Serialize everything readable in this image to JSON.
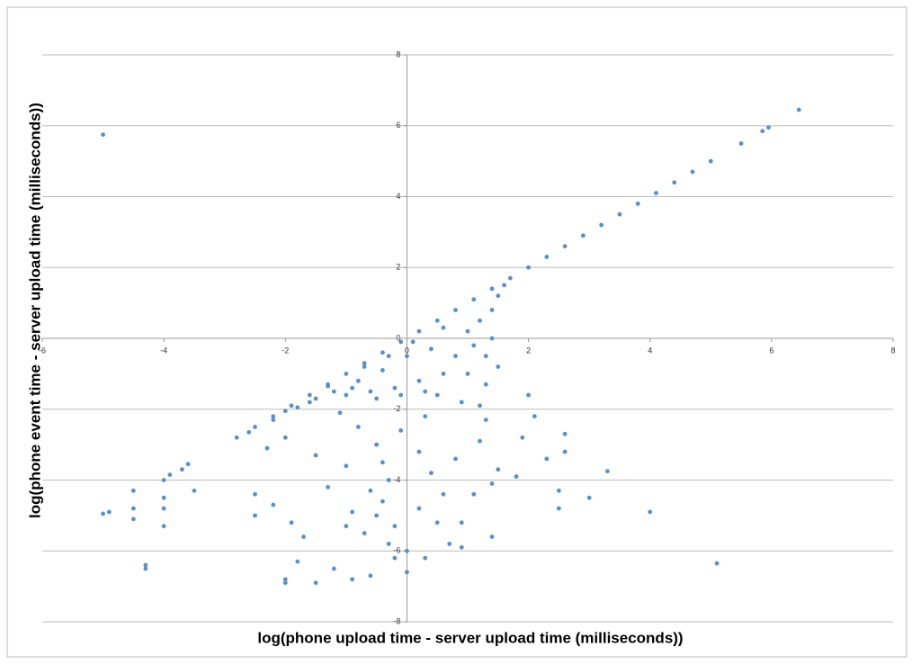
{
  "chart_data": {
    "type": "scatter",
    "x_label": "log(phone upload time - server upload time (milliseconds))",
    "y_label": "log(phone event time - server upload time (milliseconds))",
    "xlim": [
      -6,
      8
    ],
    "xticks": [
      -6,
      -4,
      -2,
      0,
      2,
      4,
      6,
      8
    ],
    "ylim": [
      -8,
      8
    ],
    "yticks": [
      -8,
      -6,
      -4,
      -2,
      0,
      2,
      4,
      6,
      8
    ],
    "grid": true,
    "series": [
      {
        "color": "#5b8fc9",
        "x": [
          -2.8,
          -2.5,
          -2.2,
          -1.9,
          -1.6,
          -1.3,
          -1.0,
          -0.7,
          -0.4,
          -0.1,
          0.2,
          0.5,
          0.8,
          1.1,
          1.4,
          1.7,
          2.0,
          2.3,
          2.6,
          2.9,
          3.2,
          3.5,
          3.8,
          4.1,
          4.4,
          4.7,
          5.0,
          5.5,
          5.85,
          5.95,
          6.45,
          -5,
          5.1,
          -5.0,
          -4.9,
          -4.3,
          -4.3,
          -4.0,
          -4.0,
          -4.0,
          -4.0,
          -3.6,
          -3.5,
          -4.5,
          -4.5,
          -4.5,
          -3.9,
          -3.7,
          4.0,
          3.3,
          3.0,
          2.6,
          2.6,
          2.5,
          2.5,
          2.0,
          2.1,
          1.9,
          2.3,
          1.8,
          1.5,
          1.4,
          1.1,
          0.9,
          1.4,
          0.9,
          0.3,
          0.0,
          -0.2,
          -0.6,
          -0.9,
          -1.5,
          -1.2,
          -2.0,
          -2.0,
          -1.8,
          -2.5,
          -2.5,
          -2.2,
          -1.9,
          -1.7,
          -1.3,
          -1.0,
          -1.5,
          -2.0,
          -2.3,
          -0.8,
          -0.5,
          -0.4,
          -0.3,
          -0.6,
          -0.4,
          -0.5,
          -0.2,
          -0.7,
          -0.3,
          0.2,
          0.5,
          0.6,
          0.4,
          0.2,
          -0.1,
          0.3,
          -1.1,
          0.7,
          0.0,
          -1.0,
          -0.9,
          0.8,
          1.2,
          1.3,
          -2.6,
          -2.2,
          -2.0,
          -1.8,
          -1.5,
          -1.2,
          -1.0,
          -0.8,
          -0.6,
          -0.4,
          -0.2,
          0.0,
          0.2,
          0.4,
          0.6,
          0.8,
          0.3,
          -0.3,
          -0.9,
          -1.6,
          -0.5,
          1.0,
          1.2,
          1.3,
          1.3,
          1.4,
          1.5,
          1.6,
          1.0,
          0.9,
          1.2,
          0.6,
          0.1,
          -0.7,
          -1.3,
          0.5,
          -0.1,
          1.5,
          1.4,
          1.1
        ],
        "values": [
          -2.8,
          -2.5,
          -2.2,
          -1.9,
          -1.6,
          -1.3,
          -1.0,
          -0.7,
          -0.4,
          -0.1,
          0.2,
          0.5,
          0.8,
          1.1,
          1.4,
          1.7,
          2.0,
          2.3,
          2.6,
          2.9,
          3.2,
          3.5,
          3.8,
          4.1,
          4.4,
          4.7,
          5.0,
          5.5,
          5.85,
          5.95,
          6.45,
          5.75,
          -6.35,
          -4.95,
          -4.9,
          -6.4,
          -6.5,
          -4.0,
          -4.5,
          -4.8,
          -5.3,
          -3.55,
          -4.3,
          -4.3,
          -4.8,
          -5.1,
          -3.85,
          -3.7,
          -4.9,
          -3.75,
          -4.5,
          -2.7,
          -3.2,
          -4.3,
          -4.8,
          -1.6,
          -2.2,
          -2.8,
          -3.4,
          -3.9,
          -3.7,
          -4.1,
          -4.4,
          -5.2,
          -5.6,
          -5.9,
          -6.2,
          -6.6,
          -6.2,
          -6.7,
          -6.8,
          -6.9,
          -6.5,
          -6.8,
          -6.9,
          -6.3,
          -5.0,
          -4.4,
          -4.7,
          -5.2,
          -5.6,
          -4.2,
          -3.6,
          -3.3,
          -2.8,
          -3.1,
          -2.5,
          -3.0,
          -3.5,
          -4.0,
          -4.3,
          -4.6,
          -5.0,
          -5.3,
          -5.5,
          -5.8,
          -4.8,
          -5.2,
          -4.4,
          -3.8,
          -3.2,
          -2.6,
          -2.2,
          -2.1,
          -5.8,
          -6.0,
          -5.3,
          -4.9,
          -3.4,
          -2.9,
          -2.3,
          -2.65,
          -2.3,
          -2.05,
          -1.95,
          -1.7,
          -1.5,
          -1.6,
          -1.2,
          -1.5,
          -0.9,
          -1.4,
          -0.5,
          -1.2,
          -0.3,
          -1.0,
          -0.5,
          -1.5,
          -0.5,
          -1.4,
          -1.8,
          -1.7,
          0.2,
          0.5,
          -0.5,
          -1.3,
          0.0,
          1.2,
          1.5,
          -1.0,
          -1.8,
          -1.9,
          0.3,
          -0.1,
          -0.8,
          -1.35,
          -1.6,
          -1.6,
          -0.8,
          0.8,
          -0.2
        ]
      }
    ]
  }
}
